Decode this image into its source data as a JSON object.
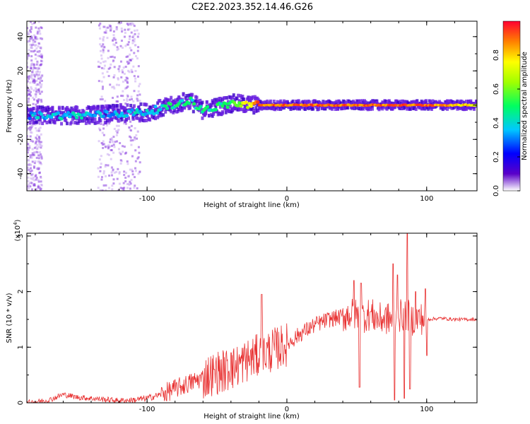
{
  "title": "C2E2.2023.352.14.46.G26",
  "colors": {
    "snr_line": "#e83030",
    "frame": "#000000",
    "spectral_base": "#5a00c8"
  },
  "chart_data": [
    {
      "type": "heatmap",
      "xlabel": "Height of straight line (km)",
      "ylabel": "Frequency (Hz)",
      "xlim": [
        -186,
        136
      ],
      "ylim": [
        -50,
        49
      ],
      "xticks": [
        -100,
        0,
        100
      ],
      "yticks": [
        -40,
        -20,
        0,
        20,
        40
      ],
      "colorbar": {
        "label": "Normalized spectral amplitude",
        "range": [
          0,
          1
        ],
        "ticks": [
          "0.0",
          "0.2",
          "0.4",
          "0.6",
          "0.8"
        ]
      },
      "ridge": {
        "description_points": [
          {
            "x": -180,
            "y": -6,
            "amplitude": 0.35
          },
          {
            "x": -150,
            "y": -6,
            "amplitude": 0.4
          },
          {
            "x": -120,
            "y": -5,
            "amplitude": 0.35
          },
          {
            "x": -100,
            "y": -4,
            "amplitude": 0.4
          },
          {
            "x": -80,
            "y": 0,
            "amplitude": 0.45
          },
          {
            "x": -70,
            "y": 3,
            "amplitude": 0.45
          },
          {
            "x": -60,
            "y": -3,
            "amplitude": 0.45
          },
          {
            "x": -40,
            "y": 1,
            "amplitude": 0.5
          },
          {
            "x": -20,
            "y": 0,
            "amplitude": 0.9
          },
          {
            "x": 0,
            "y": 0,
            "amplitude": 0.9
          },
          {
            "x": 50,
            "y": 0,
            "amplitude": 0.9
          },
          {
            "x": 100,
            "y": 0,
            "amplitude": 0.9
          },
          {
            "x": 136,
            "y": 0,
            "amplitude": 0.75
          }
        ],
        "noise_bands_x": [
          [
            -186,
            -175
          ],
          [
            -135,
            -105
          ]
        ]
      }
    },
    {
      "type": "line",
      "xlabel": "Height of straight line (km)",
      "ylabel": "SNR (10 * v/v)",
      "y_scale_note": "(x10",
      "y_scale_exp": "4",
      "y_scale_close": ")",
      "xlim": [
        -186,
        136
      ],
      "ylim": [
        0,
        3.05
      ],
      "xticks": [
        -100,
        0,
        100
      ],
      "yticks": [
        0,
        1,
        2,
        3
      ],
      "series": [
        {
          "x": [
            -186,
            -170,
            -160,
            -150,
            -140,
            -130,
            -120,
            -110,
            -100,
            -90,
            -80,
            -70,
            -60,
            -50,
            -40,
            -30,
            -20,
            -10,
            0,
            10,
            20,
            30,
            40,
            45,
            50,
            55,
            60,
            65,
            70,
            75,
            80,
            85,
            90,
            95,
            100,
            110,
            120,
            136
          ],
          "values": [
            0.0,
            0.05,
            0.15,
            0.1,
            0.08,
            0.06,
            0.04,
            0.05,
            0.08,
            0.15,
            0.25,
            0.35,
            0.45,
            0.55,
            0.6,
            0.75,
            0.85,
            0.95,
            1.05,
            1.25,
            1.4,
            1.5,
            1.55,
            1.6,
            1.58,
            1.55,
            1.6,
            1.5,
            1.52,
            1.5,
            1.55,
            1.6,
            1.5,
            1.52,
            1.5,
            1.52,
            1.5,
            1.5
          ],
          "spikes": [
            {
              "x": -18,
              "y": 1.95
            },
            {
              "x": -40,
              "y": 0.9
            },
            {
              "x": -52,
              "y": 0.6
            },
            {
              "x": 48,
              "y": 2.2
            },
            {
              "x": 52,
              "y": 0.28
            },
            {
              "x": 53,
              "y": 2.15
            },
            {
              "x": 76,
              "y": 2.5
            },
            {
              "x": 77,
              "y": 0.05
            },
            {
              "x": 79,
              "y": 2.3
            },
            {
              "x": 84,
              "y": 0.08
            },
            {
              "x": 86,
              "y": 3.05
            },
            {
              "x": 88,
              "y": 0.25
            },
            {
              "x": 92,
              "y": 2.0
            },
            {
              "x": 99,
              "y": 2.05
            },
            {
              "x": 100,
              "y": 0.85
            }
          ]
        }
      ]
    }
  ]
}
